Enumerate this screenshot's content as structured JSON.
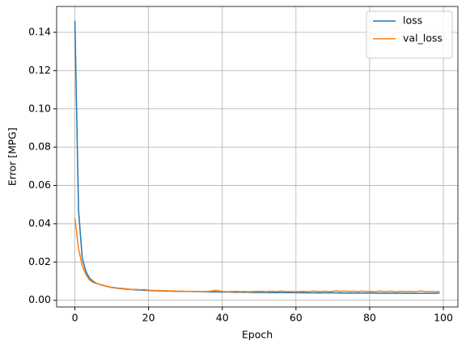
{
  "chart_data": {
    "type": "line",
    "xlabel": "Epoch",
    "ylabel": "Error [MPG]",
    "x": [
      0,
      1,
      2,
      3,
      4,
      5,
      6,
      7,
      8,
      9,
      10,
      11,
      12,
      13,
      14,
      15,
      16,
      17,
      18,
      19,
      20,
      21,
      22,
      23,
      24,
      25,
      26,
      27,
      28,
      29,
      30,
      31,
      32,
      33,
      34,
      35,
      36,
      37,
      38,
      39,
      40,
      41,
      42,
      43,
      44,
      45,
      46,
      47,
      48,
      49,
      50,
      51,
      52,
      53,
      54,
      55,
      56,
      57,
      58,
      59,
      60,
      61,
      62,
      63,
      64,
      65,
      66,
      67,
      68,
      69,
      70,
      71,
      72,
      73,
      74,
      75,
      76,
      77,
      78,
      79,
      80,
      81,
      82,
      83,
      84,
      85,
      86,
      87,
      88,
      89,
      90,
      91,
      92,
      93,
      94,
      95,
      96,
      97,
      98,
      99
    ],
    "series": [
      {
        "name": "loss",
        "color": "#1f77b4",
        "values": [
          0.146,
          0.047,
          0.022,
          0.015,
          0.0115,
          0.0098,
          0.0088,
          0.0081,
          0.0076,
          0.0071,
          0.0067,
          0.0064,
          0.0062,
          0.006,
          0.0058,
          0.0057,
          0.0055,
          0.0054,
          0.0053,
          0.0052,
          0.0051,
          0.005,
          0.005,
          0.0049,
          0.0049,
          0.0048,
          0.0048,
          0.0047,
          0.0047,
          0.0046,
          0.0046,
          0.0046,
          0.0045,
          0.0045,
          0.0045,
          0.0044,
          0.0044,
          0.0044,
          0.0044,
          0.0043,
          0.0043,
          0.0043,
          0.0043,
          0.0042,
          0.0042,
          0.0042,
          0.0042,
          0.0042,
          0.0041,
          0.0041,
          0.0041,
          0.0041,
          0.0041,
          0.004,
          0.004,
          0.004,
          0.004,
          0.004,
          0.004,
          0.004,
          0.004,
          0.0039,
          0.004,
          0.0039,
          0.0039,
          0.0039,
          0.0039,
          0.0039,
          0.0039,
          0.0039,
          0.0039,
          0.0039,
          0.0038,
          0.0038,
          0.0038,
          0.0038,
          0.0038,
          0.0038,
          0.0038,
          0.0038,
          0.0038,
          0.0038,
          0.0037,
          0.0038,
          0.0037,
          0.0037,
          0.0038,
          0.0037,
          0.0037,
          0.0037,
          0.0037,
          0.0037,
          0.0037,
          0.0036,
          0.0037,
          0.0037,
          0.0036,
          0.0037,
          0.0037,
          0.0038
        ]
      },
      {
        "name": "val_loss",
        "color": "#ff7f0e",
        "values": [
          0.043,
          0.027,
          0.018,
          0.0135,
          0.0105,
          0.0093,
          0.0087,
          0.0082,
          0.0077,
          0.0072,
          0.0068,
          0.0066,
          0.0063,
          0.0062,
          0.006,
          0.0058,
          0.0057,
          0.0057,
          0.0055,
          0.0056,
          0.0053,
          0.0052,
          0.0051,
          0.0051,
          0.005,
          0.005,
          0.0049,
          0.0049,
          0.0048,
          0.0048,
          0.0047,
          0.0047,
          0.0046,
          0.0046,
          0.0046,
          0.0045,
          0.0046,
          0.0048,
          0.0052,
          0.0051,
          0.0046,
          0.0045,
          0.0045,
          0.0046,
          0.0047,
          0.0045,
          0.0046,
          0.0045,
          0.0045,
          0.0046,
          0.0047,
          0.0046,
          0.0045,
          0.0048,
          0.0046,
          0.0045,
          0.0049,
          0.0045,
          0.0046,
          0.0045,
          0.0045,
          0.0046,
          0.0047,
          0.0045,
          0.0046,
          0.0049,
          0.0045,
          0.0046,
          0.0048,
          0.0045,
          0.0047,
          0.005,
          0.0046,
          0.0049,
          0.0047,
          0.0046,
          0.0048,
          0.0045,
          0.0049,
          0.0046,
          0.0047,
          0.0045,
          0.0046,
          0.0049,
          0.0045,
          0.0046,
          0.0048,
          0.0044,
          0.0046,
          0.0047,
          0.0045,
          0.0047,
          0.0045,
          0.0046,
          0.0049,
          0.0046,
          0.0045,
          0.0047,
          0.0044,
          0.0047
        ]
      }
    ],
    "xlim": [
      -4.95,
      103.95
    ],
    "ylim": [
      -0.0035,
      0.1535
    ],
    "xticks": [
      0,
      20,
      40,
      60,
      80,
      100
    ],
    "yticks": [
      {
        "value": 0,
        "label": "0.00"
      },
      0.02,
      0.04,
      0.06,
      0.08,
      {
        "value": 0.1,
        "label": "0.10"
      },
      0.12,
      0.14
    ],
    "grid": true,
    "legend": "upper right"
  }
}
